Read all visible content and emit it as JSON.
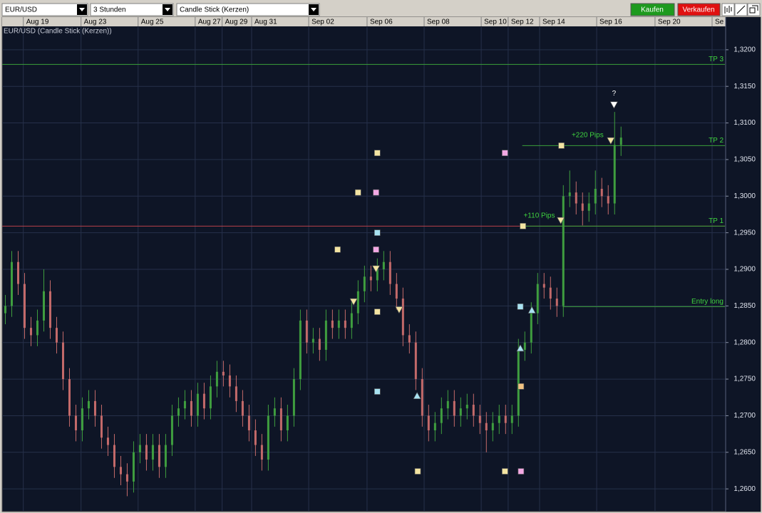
{
  "toolbar": {
    "symbol": "EUR/USD",
    "interval": "3 Stunden",
    "style": "Candle Stick (Kerzen)",
    "buy": "Kaufen",
    "sell": "Verkaufen"
  },
  "chart_data": {
    "type": "candlestick",
    "title": "EUR/USD (Candle Stick (Kerzen))",
    "up_color": "#3f9e3f",
    "down_color": "#c46a6a",
    "grid": true,
    "xlim": [
      -0.5,
      112.2
    ],
    "ylim": [
      1.2569,
      1.3231
    ],
    "xticks": [
      {
        "value": 2.8,
        "label": "Aug 19"
      },
      {
        "value": 11.8,
        "label": "Aug 23"
      },
      {
        "value": 20.7,
        "label": "Aug 25"
      },
      {
        "value": 29.6,
        "label": "Aug 27"
      },
      {
        "value": 33.8,
        "label": "Aug 29"
      },
      {
        "value": 38.4,
        "label": "Aug 31"
      },
      {
        "value": 47.3,
        "label": "Sep 02"
      },
      {
        "value": 56.4,
        "label": "Sep 06"
      },
      {
        "value": 65.3,
        "label": "Sep 08"
      },
      {
        "value": 74.2,
        "label": "Sep 10"
      },
      {
        "value": 78.4,
        "label": "Sep 12"
      },
      {
        "value": 83.3,
        "label": "Sep 14"
      },
      {
        "value": 92.2,
        "label": "Sep 16"
      },
      {
        "value": 101.3,
        "label": "Sep 20"
      },
      {
        "value": 110.2,
        "label": "Se"
      }
    ],
    "yticks": [
      {
        "value": 1.26,
        "label": "1,2600"
      },
      {
        "value": 1.265,
        "label": "1,2650"
      },
      {
        "value": 1.27,
        "label": "1,2700"
      },
      {
        "value": 1.275,
        "label": "1,2750"
      },
      {
        "value": 1.28,
        "label": "1,2800"
      },
      {
        "value": 1.285,
        "label": "1,2850"
      },
      {
        "value": 1.29,
        "label": "1,2900"
      },
      {
        "value": 1.295,
        "label": "1,2950"
      },
      {
        "value": 1.3,
        "label": "1,3000"
      },
      {
        "value": 1.305,
        "label": "1,3050"
      },
      {
        "value": 1.31,
        "label": "1,3100"
      },
      {
        "value": 1.315,
        "label": "1,3150"
      },
      {
        "value": 1.32,
        "label": "1,3200"
      }
    ],
    "candles": [
      [
        1.284,
        1.2865,
        1.2825,
        1.285
      ],
      [
        1.285,
        1.2925,
        1.2835,
        1.291
      ],
      [
        1.291,
        1.2925,
        1.2865,
        1.288
      ],
      [
        1.288,
        1.2895,
        1.2805,
        1.282
      ],
      [
        1.282,
        1.2835,
        1.2795,
        1.281
      ],
      [
        1.281,
        1.2845,
        1.2795,
        1.283
      ],
      [
        1.283,
        1.29,
        1.2815,
        1.287
      ],
      [
        1.287,
        1.2885,
        1.2805,
        1.282
      ],
      [
        1.282,
        1.2835,
        1.2785,
        1.28
      ],
      [
        1.28,
        1.2815,
        1.2735,
        1.275
      ],
      [
        1.275,
        1.2765,
        1.2685,
        1.27
      ],
      [
        1.27,
        1.2715,
        1.2665,
        1.268
      ],
      [
        1.268,
        1.2725,
        1.2665,
        1.271
      ],
      [
        1.271,
        1.2735,
        1.2695,
        1.272
      ],
      [
        1.272,
        1.2735,
        1.2685,
        1.27
      ],
      [
        1.27,
        1.2715,
        1.2655,
        1.267
      ],
      [
        1.267,
        1.2685,
        1.2645,
        1.266
      ],
      [
        1.266,
        1.2675,
        1.2615,
        1.263
      ],
      [
        1.263,
        1.2645,
        1.2605,
        1.262
      ],
      [
        1.262,
        1.2635,
        1.259,
        1.261
      ],
      [
        1.261,
        1.2665,
        1.2595,
        1.265
      ],
      [
        1.265,
        1.2675,
        1.2635,
        1.266
      ],
      [
        1.266,
        1.2675,
        1.2625,
        1.264
      ],
      [
        1.264,
        1.2675,
        1.2625,
        1.266
      ],
      [
        1.266,
        1.2675,
        1.2615,
        1.263
      ],
      [
        1.263,
        1.2675,
        1.2615,
        1.266
      ],
      [
        1.266,
        1.2715,
        1.2645,
        1.27
      ],
      [
        1.27,
        1.2725,
        1.2685,
        1.271
      ],
      [
        1.271,
        1.2735,
        1.2695,
        1.272
      ],
      [
        1.272,
        1.2735,
        1.2685,
        1.27
      ],
      [
        1.27,
        1.2745,
        1.2685,
        1.273
      ],
      [
        1.273,
        1.2745,
        1.2695,
        1.271
      ],
      [
        1.271,
        1.2755,
        1.2695,
        1.274
      ],
      [
        1.274,
        1.2775,
        1.2725,
        1.276
      ],
      [
        1.276,
        1.2775,
        1.274,
        1.2755
      ],
      [
        1.2755,
        1.277,
        1.2725,
        1.274
      ],
      [
        1.274,
        1.2755,
        1.2705,
        1.272
      ],
      [
        1.272,
        1.2735,
        1.2685,
        1.27
      ],
      [
        1.27,
        1.2715,
        1.2665,
        1.268
      ],
      [
        1.268,
        1.2695,
        1.2645,
        1.266
      ],
      [
        1.266,
        1.2675,
        1.2625,
        1.264
      ],
      [
        1.264,
        1.2715,
        1.2625,
        1.27
      ],
      [
        1.27,
        1.2725,
        1.2685,
        1.271
      ],
      [
        1.271,
        1.2725,
        1.2665,
        1.268
      ],
      [
        1.268,
        1.2715,
        1.2665,
        1.27
      ],
      [
        1.27,
        1.2765,
        1.2685,
        1.275
      ],
      [
        1.275,
        1.2845,
        1.2735,
        1.283
      ],
      [
        1.283,
        1.2845,
        1.2785,
        1.28
      ],
      [
        1.28,
        1.282,
        1.2785,
        1.2805
      ],
      [
        1.2805,
        1.282,
        1.2775,
        1.279
      ],
      [
        1.279,
        1.2845,
        1.2775,
        1.283
      ],
      [
        1.283,
        1.2845,
        1.2805,
        1.282
      ],
      [
        1.282,
        1.2845,
        1.2805,
        1.283
      ],
      [
        1.283,
        1.2845,
        1.2805,
        1.282
      ],
      [
        1.282,
        1.2855,
        1.2805,
        1.284
      ],
      [
        1.284,
        1.2885,
        1.2825,
        1.287
      ],
      [
        1.287,
        1.2905,
        1.2855,
        1.289
      ],
      [
        1.289,
        1.2905,
        1.287,
        1.2885
      ],
      [
        1.2885,
        1.2915,
        1.287,
        1.29
      ],
      [
        1.29,
        1.2925,
        1.2885,
        1.291
      ],
      [
        1.291,
        1.2925,
        1.2865,
        1.288
      ],
      [
        1.288,
        1.2895,
        1.2845,
        1.286
      ],
      [
        1.286,
        1.2875,
        1.2795,
        1.281
      ],
      [
        1.281,
        1.2825,
        1.2785,
        1.28
      ],
      [
        1.28,
        1.2815,
        1.2735,
        1.275
      ],
      [
        1.275,
        1.2765,
        1.2685,
        1.27
      ],
      [
        1.27,
        1.2715,
        1.2665,
        1.268
      ],
      [
        1.268,
        1.2705,
        1.2665,
        1.269
      ],
      [
        1.269,
        1.2725,
        1.2675,
        1.271
      ],
      [
        1.271,
        1.2735,
        1.2695,
        1.272
      ],
      [
        1.272,
        1.2735,
        1.2685,
        1.27
      ],
      [
        1.27,
        1.2725,
        1.2685,
        1.271
      ],
      [
        1.271,
        1.273,
        1.2695,
        1.2715
      ],
      [
        1.2715,
        1.273,
        1.2685,
        1.27
      ],
      [
        1.27,
        1.2715,
        1.2675,
        1.269
      ],
      [
        1.269,
        1.2705,
        1.265,
        1.268
      ],
      [
        1.268,
        1.2705,
        1.2665,
        1.269
      ],
      [
        1.269,
        1.2715,
        1.2675,
        1.27
      ],
      [
        1.27,
        1.2715,
        1.2675,
        1.269
      ],
      [
        1.269,
        1.2715,
        1.2675,
        1.27
      ],
      [
        1.27,
        1.2805,
        1.2685,
        1.279
      ],
      [
        1.279,
        1.2815,
        1.2775,
        1.28
      ],
      [
        1.28,
        1.2855,
        1.2785,
        1.284
      ],
      [
        1.284,
        1.2895,
        1.2825,
        1.288
      ],
      [
        1.288,
        1.2895,
        1.286,
        1.2875
      ],
      [
        1.2875,
        1.289,
        1.2845,
        1.286
      ],
      [
        1.286,
        1.2875,
        1.2835,
        1.285
      ],
      [
        1.285,
        1.3015,
        1.2835,
        1.3
      ],
      [
        1.3,
        1.3035,
        1.2985,
        1.3005
      ],
      [
        1.3005,
        1.302,
        1.2975,
        1.299
      ],
      [
        1.299,
        1.3005,
        1.296,
        1.298
      ],
      [
        1.298,
        1.3005,
        1.2965,
        1.299
      ],
      [
        1.299,
        1.3035,
        1.2975,
        1.301
      ],
      [
        1.301,
        1.3025,
        1.2985,
        1.3
      ],
      [
        1.3,
        1.3015,
        1.2975,
        1.299
      ],
      [
        1.299,
        1.3115,
        1.2975,
        1.307
      ],
      [
        1.307,
        1.3095,
        1.3055,
        1.308
      ]
    ],
    "levels": [
      {
        "value": 1.2959,
        "color": "#b8404a"
      },
      {
        "value": 1.318,
        "color": "#3aa03a",
        "label": "TP 3"
      },
      {
        "value": 1.3069,
        "color": "#3aa03a",
        "label": "TP 2",
        "start": 80.6
      },
      {
        "value": 1.2959,
        "color": "#3aa03a",
        "label": "TP 1",
        "start": 80.6
      },
      {
        "value": 1.2849,
        "color": "#3aa03a",
        "label": "Entry long",
        "start": 86.9
      }
    ],
    "annotations": [
      {
        "text": "+110 Pips",
        "x": 80.8,
        "y": 1.2973,
        "color": "#3fd23f"
      },
      {
        "text": "+220 Pips",
        "x": 88.3,
        "y": 1.3083,
        "color": "#3fd23f"
      },
      {
        "text": "?",
        "x": 94.9,
        "y": 1.314,
        "color": "#ffffff"
      }
    ],
    "markers": [
      {
        "shape": "square",
        "color": "#f3e4a2",
        "x": 58.0,
        "y": 1.3059
      },
      {
        "shape": "square",
        "color": "#f2a8e4",
        "x": 77.9,
        "y": 1.3059
      },
      {
        "shape": "square",
        "color": "#f3e4a2",
        "x": 55.0,
        "y": 1.3005
      },
      {
        "shape": "square",
        "color": "#f2a8e4",
        "x": 57.8,
        "y": 1.3005
      },
      {
        "shape": "square",
        "color": "#a8e2f2",
        "x": 58.0,
        "y": 1.295
      },
      {
        "shape": "square",
        "color": "#f3e4a2",
        "x": 51.8,
        "y": 1.2927
      },
      {
        "shape": "square",
        "color": "#f2a8e4",
        "x": 57.8,
        "y": 1.2927
      },
      {
        "shape": "square",
        "color": "#f3e4a2",
        "x": 58.0,
        "y": 1.2842
      },
      {
        "shape": "square",
        "color": "#a8e2f2",
        "x": 58.0,
        "y": 1.2733
      },
      {
        "shape": "square",
        "color": "#f3e4a2",
        "x": 64.3,
        "y": 1.2624
      },
      {
        "shape": "square",
        "color": "#f3e4a2",
        "x": 77.9,
        "y": 1.2624
      },
      {
        "shape": "square",
        "color": "#f2a8e4",
        "x": 80.4,
        "y": 1.2624
      },
      {
        "shape": "square",
        "color": "#f3e4a2",
        "x": 86.7,
        "y": 1.3069
      },
      {
        "shape": "square",
        "color": "#f3e4a2",
        "x": 80.7,
        "y": 1.2959
      },
      {
        "shape": "square",
        "color": "#a8e2f2",
        "x": 80.3,
        "y": 1.2849
      },
      {
        "shape": "square",
        "color": "#f0c282",
        "x": 80.4,
        "y": 1.274
      },
      {
        "shape": "down",
        "color": "#f3e4a2",
        "x": 54.3,
        "y": 1.2856
      },
      {
        "shape": "down",
        "color": "#f3e4a2",
        "x": 57.8,
        "y": 1.2901
      },
      {
        "shape": "down",
        "color": "#f3e4a2",
        "x": 61.4,
        "y": 1.2845
      },
      {
        "shape": "down",
        "color": "#f3e4a2",
        "x": 86.6,
        "y": 1.2967
      },
      {
        "shape": "down",
        "color": "#f3e4a2",
        "x": 94.4,
        "y": 1.3076
      },
      {
        "shape": "up",
        "color": "#a8e2f2",
        "x": 64.2,
        "y": 1.2727
      },
      {
        "shape": "up",
        "color": "#a8e2f2",
        "x": 80.3,
        "y": 1.2792
      },
      {
        "shape": "up",
        "color": "#a8e2f2",
        "x": 82.1,
        "y": 1.2844
      },
      {
        "shape": "down",
        "color": "#ffffff",
        "x": 94.9,
        "y": 1.3125
      }
    ]
  }
}
